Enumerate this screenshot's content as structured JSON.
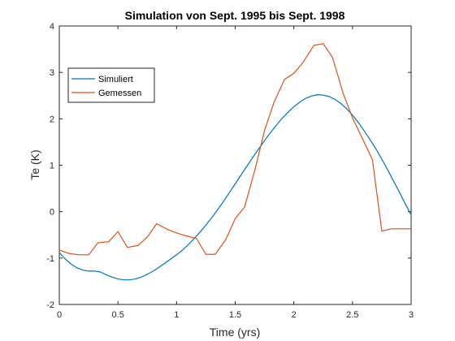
{
  "chart_data": {
    "type": "line",
    "title": "Simulation von Sept. 1995 bis Sept. 1998",
    "xlabel": "Time (yrs)",
    "ylabel": "Te (K)",
    "xlim": [
      0,
      3
    ],
    "ylim": [
      -2,
      4
    ],
    "xticks": [
      0,
      0.5,
      1,
      1.5,
      2,
      2.5,
      3
    ],
    "xtick_labels": [
      "0",
      "0.5",
      "1",
      "1.5",
      "2",
      "2.5",
      "3"
    ],
    "yticks": [
      -2,
      -1,
      0,
      1,
      2,
      3,
      4
    ],
    "ytick_labels": [
      "-2",
      "-1",
      "0",
      "1",
      "2",
      "3",
      "4"
    ],
    "grid": false,
    "legend_position": "upper-left",
    "series": [
      {
        "name": "Simuliert",
        "color": "#0072BD",
        "x": [
          0,
          0.05,
          0.1,
          0.15,
          0.2,
          0.25,
          0.3,
          0.35,
          0.4,
          0.45,
          0.5,
          0.55,
          0.6,
          0.65,
          0.7,
          0.75,
          0.8,
          0.85,
          0.9,
          0.95,
          1.0,
          1.05,
          1.1,
          1.15,
          1.2,
          1.25,
          1.3,
          1.35,
          1.4,
          1.45,
          1.5,
          1.55,
          1.6,
          1.65,
          1.7,
          1.75,
          1.8,
          1.85,
          1.9,
          1.95,
          2.0,
          2.05,
          2.1,
          2.15,
          2.2,
          2.25,
          2.3,
          2.35,
          2.4,
          2.45,
          2.5,
          2.55,
          2.6,
          2.65,
          2.7,
          2.75,
          2.8,
          2.85,
          2.9,
          2.95,
          3.0
        ],
        "values": [
          -0.88,
          -1.02,
          -1.13,
          -1.21,
          -1.26,
          -1.28,
          -1.28,
          -1.3,
          -1.36,
          -1.41,
          -1.45,
          -1.47,
          -1.47,
          -1.45,
          -1.41,
          -1.35,
          -1.28,
          -1.2,
          -1.11,
          -1.02,
          -0.93,
          -0.83,
          -0.71,
          -0.58,
          -0.44,
          -0.29,
          -0.13,
          0.04,
          0.22,
          0.41,
          0.6,
          0.79,
          0.98,
          1.17,
          1.35,
          1.53,
          1.7,
          1.86,
          2.01,
          2.14,
          2.26,
          2.36,
          2.44,
          2.49,
          2.52,
          2.51,
          2.48,
          2.42,
          2.33,
          2.22,
          2.08,
          1.92,
          1.74,
          1.55,
          1.35,
          1.13,
          0.9,
          0.66,
          0.42,
          0.17,
          -0.07
        ]
      },
      {
        "name": "Gemessen",
        "color": "#D95319",
        "x": [
          0,
          0.08,
          0.17,
          0.25,
          0.33,
          0.42,
          0.5,
          0.58,
          0.67,
          0.75,
          0.83,
          0.92,
          1.0,
          1.08,
          1.17,
          1.25,
          1.33,
          1.42,
          1.5,
          1.58,
          1.67,
          1.75,
          1.83,
          1.92,
          2.0,
          2.08,
          2.17,
          2.25,
          2.33,
          2.42,
          2.5,
          2.58,
          2.67,
          2.75,
          2.83,
          2.92,
          3.0
        ],
        "values": [
          -0.83,
          -0.9,
          -0.93,
          -0.93,
          -0.67,
          -0.65,
          -0.43,
          -0.77,
          -0.73,
          -0.55,
          -0.26,
          -0.38,
          -0.46,
          -0.52,
          -0.58,
          -0.92,
          -0.92,
          -0.6,
          -0.15,
          0.1,
          0.92,
          1.75,
          2.35,
          2.85,
          2.98,
          3.22,
          3.58,
          3.62,
          3.32,
          2.55,
          2.02,
          1.6,
          1.12,
          -0.42,
          -0.37,
          -0.37,
          -0.37
        ]
      }
    ]
  }
}
